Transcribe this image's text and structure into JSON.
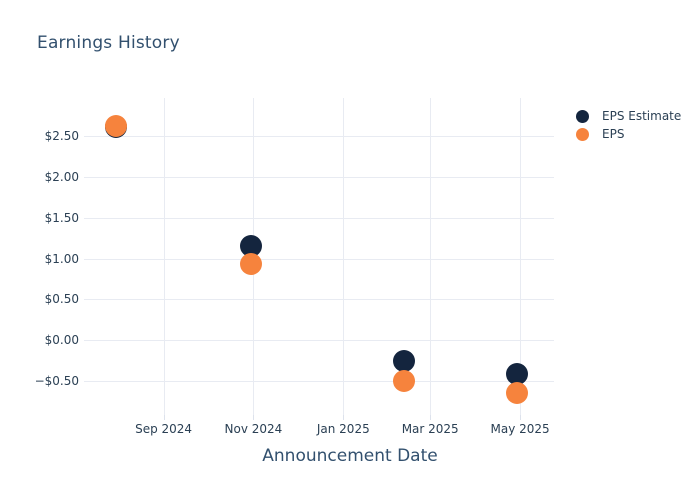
{
  "title": "Earnings History",
  "colors": {
    "background": "#ffffff",
    "title_text": "#32506e",
    "axis_text": "#2b4054",
    "grid": "#e8ebf2",
    "tick": "#dde2ec",
    "estimate": "#14253e",
    "eps": "#f6833d"
  },
  "chart_data": {
    "type": "scatter",
    "title": "Earnings History",
    "xlabel": "Announcement Date",
    "ylabel": "",
    "grid": true,
    "legend_position": "right",
    "marker_size_px": 22,
    "legend_marker_size_px": 13,
    "xlim": [
      "2024-07-09",
      "2025-05-24"
    ],
    "ylim": [
      -0.92,
      2.97
    ],
    "x_ticks": [
      {
        "value": "2024-09-01",
        "label": "Sep 2024"
      },
      {
        "value": "2024-11-01",
        "label": "Nov 2024"
      },
      {
        "value": "2025-01-01",
        "label": "Jan 2025"
      },
      {
        "value": "2025-03-01",
        "label": "Mar 2025"
      },
      {
        "value": "2025-05-01",
        "label": "May 2025"
      }
    ],
    "y_ticks": [
      {
        "value": 2.5,
        "label": "$2.50"
      },
      {
        "value": 2.0,
        "label": "$2.00"
      },
      {
        "value": 1.5,
        "label": "$1.50"
      },
      {
        "value": 1.0,
        "label": "$1.00"
      },
      {
        "value": 0.5,
        "label": "$0.50"
      },
      {
        "value": 0.0,
        "label": "$0.00"
      },
      {
        "value": -0.5,
        "label": "−$0.50"
      }
    ],
    "series": [
      {
        "name": "EPS Estimate",
        "color_key": "estimate",
        "points": [
          {
            "x": "2024-07-31",
            "y": 2.61
          },
          {
            "x": "2024-10-30",
            "y": 1.16
          },
          {
            "x": "2025-02-11",
            "y": -0.26
          },
          {
            "x": "2025-04-29",
            "y": -0.42
          }
        ]
      },
      {
        "name": "EPS",
        "color_key": "eps",
        "points": [
          {
            "x": "2024-07-31",
            "y": 2.63
          },
          {
            "x": "2024-10-30",
            "y": 0.93
          },
          {
            "x": "2025-02-11",
            "y": -0.5
          },
          {
            "x": "2025-04-29",
            "y": -0.65
          }
        ]
      }
    ]
  }
}
